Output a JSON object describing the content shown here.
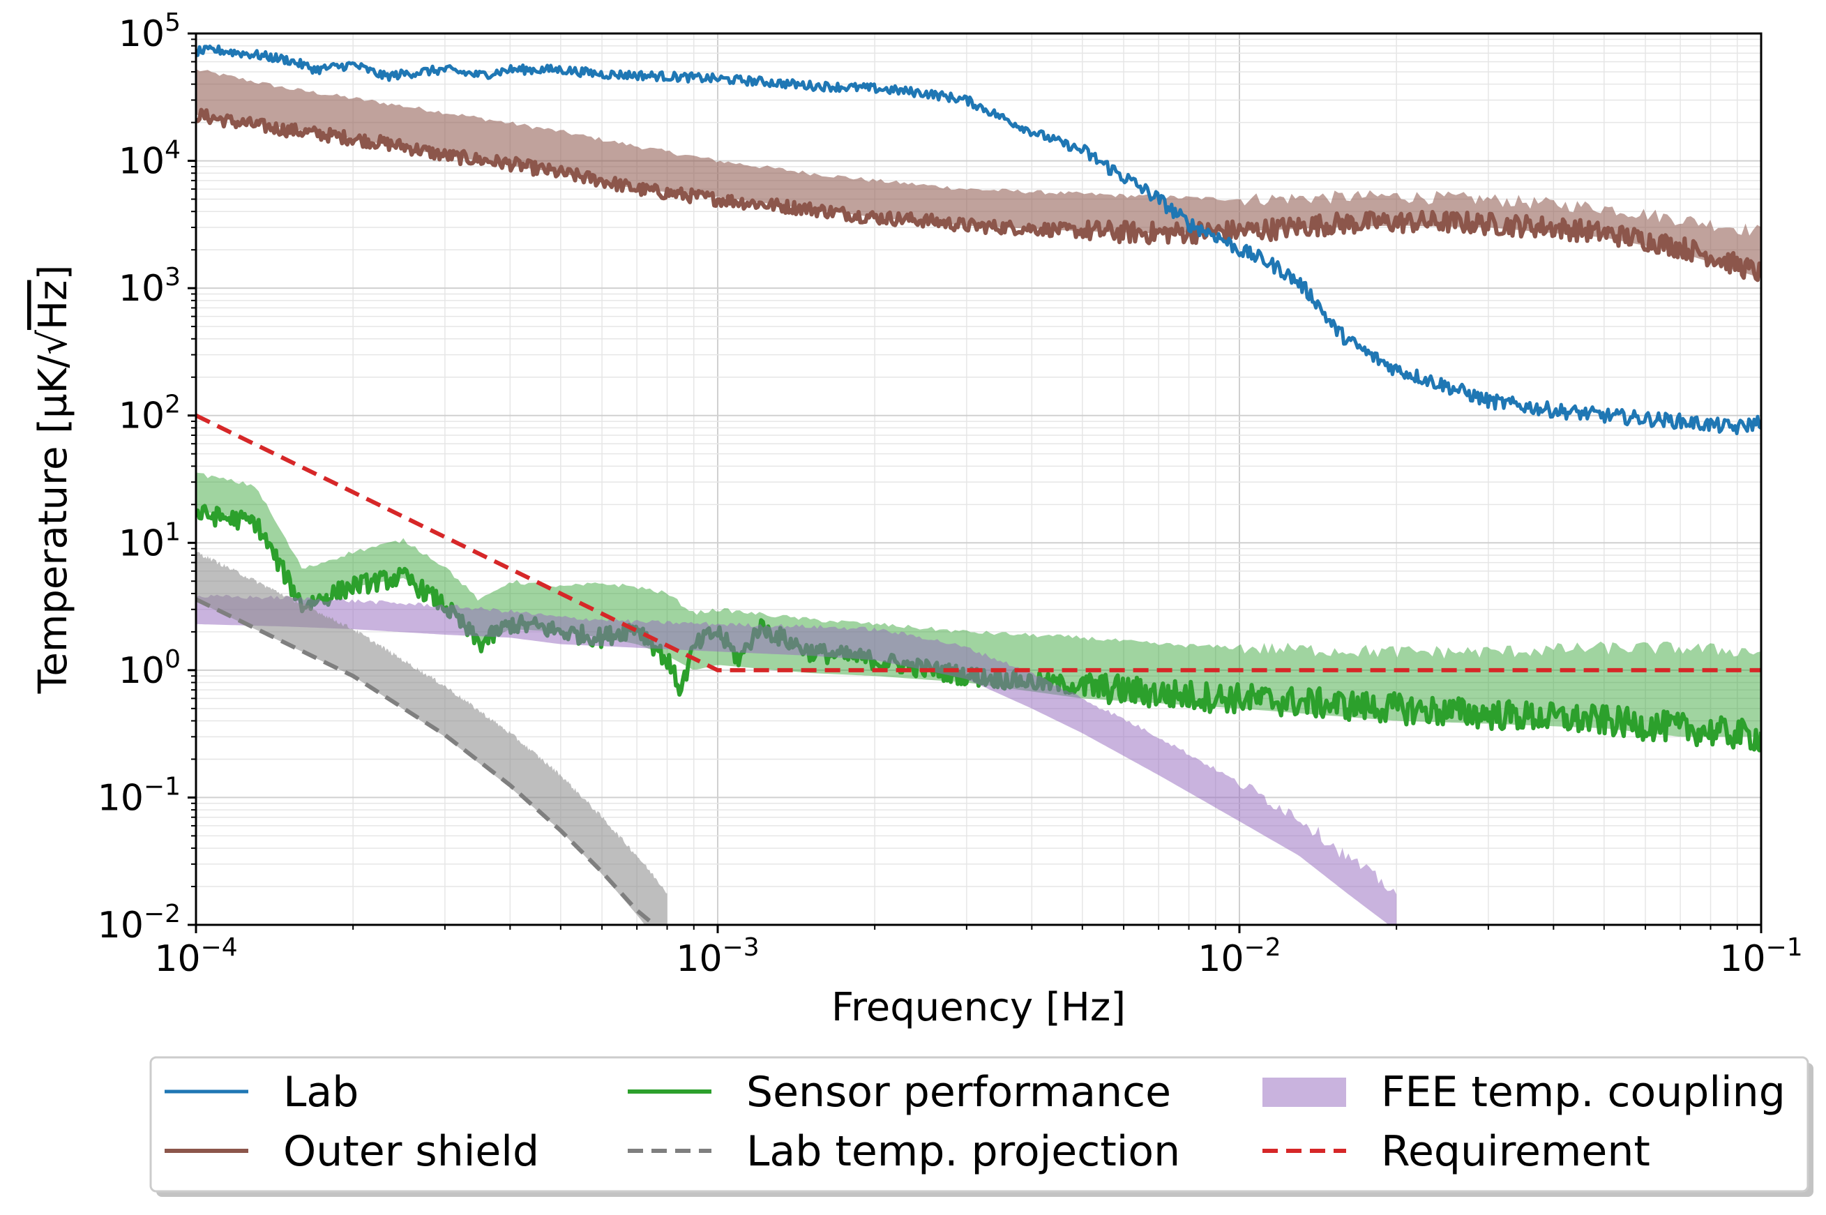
{
  "chart_data": {
    "type": "line",
    "xscale": "log",
    "yscale": "log",
    "xlim": [
      0.0001,
      0.1
    ],
    "ylim": [
      0.01,
      100000
    ],
    "xlabel": "Frequency [Hz]",
    "ylabel": "Temperature [µK/√Hz]",
    "ylabel_parts": {
      "prefix": "Temperature [µK/√",
      "radicand": "Hz",
      "suffix": "]"
    },
    "grid": true,
    "legend_position": "bottom",
    "x_ticks": [
      {
        "value": 0.0001,
        "base": "10",
        "exp": "−4"
      },
      {
        "value": 0.001,
        "base": "10",
        "exp": "−3"
      },
      {
        "value": 0.01,
        "base": "10",
        "exp": "−2"
      },
      {
        "value": 0.1,
        "base": "10",
        "exp": "−1"
      }
    ],
    "y_ticks": [
      {
        "value": 0.01,
        "base": "10",
        "exp": "−2"
      },
      {
        "value": 0.1,
        "base": "10",
        "exp": "−1"
      },
      {
        "value": 1,
        "base": "10",
        "exp": "0"
      },
      {
        "value": 10,
        "base": "10",
        "exp": "1"
      },
      {
        "value": 100,
        "base": "10",
        "exp": "2"
      },
      {
        "value": 1000,
        "base": "10",
        "exp": "3"
      },
      {
        "value": 10000,
        "base": "10",
        "exp": "4"
      },
      {
        "value": 100000,
        "base": "10",
        "exp": "5"
      }
    ],
    "series": [
      {
        "name": "Outer shield band",
        "kind": "band",
        "color": "#8c564b",
        "opacity": 0.55,
        "x": [
          0.0001,
          0.00015,
          0.0002,
          0.0003,
          0.0005,
          0.0007,
          0.001,
          0.0015,
          0.002,
          0.003,
          0.005,
          0.007,
          0.01,
          0.015,
          0.02,
          0.03,
          0.05,
          0.07,
          0.1
        ],
        "lower": [
          23000,
          18000,
          15000,
          11000,
          8000,
          6000,
          5200,
          4200,
          3600,
          3100,
          2800,
          2700,
          2800,
          3000,
          3100,
          3000,
          2500,
          1900,
          1200
        ],
        "upper": [
          52000,
          37000,
          31000,
          24000,
          17000,
          13000,
          10000,
          8000,
          7000,
          6000,
          5500,
          5200,
          5000,
          5200,
          5300,
          5000,
          4300,
          3500,
          2800
        ]
      },
      {
        "name": "Outer shield",
        "kind": "line",
        "color": "#8c564b",
        "width": 6,
        "x": [
          0.0001,
          0.00012,
          0.00015,
          0.0002,
          0.00025,
          0.0003,
          0.0004,
          0.0005,
          0.0006,
          0.0007,
          0.0008,
          0.001,
          0.0012,
          0.0015,
          0.002,
          0.0025,
          0.003,
          0.004,
          0.005,
          0.006,
          0.007,
          0.008,
          0.01,
          0.012,
          0.015,
          0.02,
          0.025,
          0.03,
          0.04,
          0.05,
          0.06,
          0.07,
          0.08,
          0.1
        ],
        "y": [
          23000,
          20000,
          17500,
          15000,
          13000,
          11000,
          9500,
          8000,
          7000,
          6000,
          5600,
          5000,
          4600,
          4200,
          3600,
          3400,
          3100,
          2950,
          2800,
          2750,
          2700,
          2750,
          2800,
          2950,
          3200,
          3300,
          3300,
          3200,
          3000,
          2700,
          2400,
          2100,
          1800,
          1300
        ],
        "jitter": 0.18
      },
      {
        "name": "Lab",
        "kind": "line",
        "color": "#1f77b4",
        "width": 5,
        "x": [
          0.0001,
          0.00011,
          0.00013,
          0.00015,
          0.00017,
          0.0002,
          0.00023,
          0.00027,
          0.0003,
          0.00035,
          0.0004,
          0.0005,
          0.0006,
          0.0007,
          0.0008,
          0.0009,
          0.001,
          0.0012,
          0.0015,
          0.002,
          0.0025,
          0.003,
          0.0035,
          0.004,
          0.005,
          0.006,
          0.007,
          0.008,
          0.009,
          0.01,
          0.011,
          0.012,
          0.013,
          0.014,
          0.015,
          0.016,
          0.018,
          0.02,
          0.025,
          0.03,
          0.04,
          0.05,
          0.07,
          0.09,
          0.1
        ],
        "y": [
          72000,
          74000,
          68000,
          62000,
          52000,
          57000,
          46000,
          50000,
          52000,
          47000,
          52000,
          52000,
          48000,
          47000,
          46000,
          45000,
          44000,
          42000,
          39000,
          37000,
          34000,
          30000,
          22000,
          17000,
          12000,
          7500,
          5000,
          3200,
          2600,
          2000,
          1700,
          1400,
          1100,
          800,
          520,
          400,
          290,
          230,
          170,
          130,
          110,
          100,
          90,
          80,
          90
        ],
        "jitter": 0.12
      },
      {
        "name": "Sensor performance band",
        "kind": "band",
        "color": "#2ca02c",
        "opacity": 0.45,
        "x": [
          0.0001,
          0.00013,
          0.00016,
          0.0002,
          0.00025,
          0.0003,
          0.00035,
          0.0004,
          0.0005,
          0.0006,
          0.0007,
          0.0008,
          0.0009,
          0.001,
          0.0015,
          0.002,
          0.003,
          0.005,
          0.007,
          0.01,
          0.02,
          0.03,
          0.05,
          0.07,
          0.1
        ],
        "lower": [
          18,
          15,
          3.2,
          4.5,
          5.3,
          3.3,
          1.6,
          2.1,
          2.0,
          1.8,
          1.6,
          1.3,
          1.0,
          1.1,
          0.95,
          0.9,
          0.8,
          0.6,
          0.55,
          0.5,
          0.4,
          0.38,
          0.35,
          0.3,
          0.3
        ],
        "upper": [
          35,
          28,
          6.2,
          8.5,
          10.5,
          6.5,
          3.5,
          5.0,
          4.5,
          4.8,
          4.5,
          4.0,
          2.8,
          3.0,
          2.5,
          2.3,
          2.0,
          1.8,
          1.6,
          1.5,
          1.4,
          1.4,
          1.5,
          1.5,
          1.4
        ]
      },
      {
        "name": "Sensor performance",
        "kind": "line",
        "color": "#2ca02c",
        "width": 6,
        "x": [
          0.0001,
          0.00013,
          0.00016,
          0.0002,
          0.00025,
          0.0003,
          0.00035,
          0.0004,
          0.00045,
          0.0005,
          0.0006,
          0.0007,
          0.00075,
          0.0008,
          0.00085,
          0.0009,
          0.00095,
          0.001,
          0.0011,
          0.0012,
          0.0015,
          0.002,
          0.003,
          0.005,
          0.007,
          0.01,
          0.02,
          0.03,
          0.05,
          0.07,
          0.1
        ],
        "y": [
          17,
          14.5,
          3.2,
          4.6,
          5.4,
          3.2,
          1.6,
          2.3,
          2.2,
          2.0,
          1.8,
          2.2,
          1.6,
          1.2,
          0.7,
          1.5,
          1.8,
          2.0,
          1.2,
          2.2,
          1.4,
          1.2,
          0.9,
          0.75,
          0.65,
          0.6,
          0.5,
          0.45,
          0.4,
          0.35,
          0.3
        ],
        "jitter": 0.25
      },
      {
        "name": "FEE temp. coupling",
        "kind": "band",
        "color": "#9467bd",
        "opacity": 0.5,
        "x": [
          0.0001,
          0.00015,
          0.0002,
          0.0003,
          0.0004,
          0.0005,
          0.0007,
          0.001,
          0.0015,
          0.002,
          0.0025,
          0.003,
          0.004,
          0.005,
          0.007,
          0.01,
          0.013,
          0.016,
          0.02
        ],
        "lower": [
          2.3,
          2.2,
          2.1,
          1.9,
          1.8,
          1.6,
          1.5,
          1.4,
          1.3,
          1.2,
          1.0,
          0.85,
          0.5,
          0.32,
          0.15,
          0.065,
          0.035,
          0.018,
          0.009
        ],
        "upper": [
          3.8,
          3.7,
          3.5,
          3.2,
          2.9,
          2.6,
          2.4,
          2.3,
          2.2,
          2.1,
          1.8,
          1.5,
          0.95,
          0.6,
          0.3,
          0.13,
          0.07,
          0.035,
          0.018
        ]
      },
      {
        "name": "Lab temp. projection band",
        "kind": "band",
        "color": "#888888",
        "opacity": 0.55,
        "x": [
          0.0001,
          0.0002,
          0.0003,
          0.0004,
          0.0005,
          0.0006,
          0.0007,
          0.0008
        ],
        "lower": [
          3.5,
          0.9,
          0.3,
          0.12,
          0.055,
          0.025,
          0.012,
          0.006
        ],
        "upper": [
          8.5,
          2.1,
          0.75,
          0.32,
          0.15,
          0.07,
          0.035,
          0.018
        ]
      },
      {
        "name": "Lab temp. projection",
        "kind": "line",
        "color": "#7f7f7f",
        "width": 6,
        "dash": "22,12",
        "x": [
          0.0001,
          0.0002,
          0.0003,
          0.0004,
          0.0005,
          0.0006,
          0.0007,
          0.00078
        ],
        "y": [
          3.6,
          0.9,
          0.31,
          0.125,
          0.055,
          0.026,
          0.013,
          0.009
        ],
        "jitter": 0
      },
      {
        "name": "Requirement",
        "kind": "line",
        "color": "#d62728",
        "width": 6,
        "dash": "22,12",
        "x": [
          0.0001,
          0.001,
          0.1
        ],
        "y": [
          100,
          1,
          1
        ],
        "jitter": 0
      }
    ],
    "legend": [
      {
        "label": "Lab",
        "color": "#1f77b4",
        "style": "line"
      },
      {
        "label": "Outer shield",
        "color": "#8c564b",
        "style": "line"
      },
      {
        "label": "Sensor performance",
        "color": "#2ca02c",
        "style": "line"
      },
      {
        "label": "Lab temp. projection",
        "color": "#7f7f7f",
        "style": "dashed"
      },
      {
        "label": "FEE temp. coupling",
        "color": "#9467bd",
        "style": "patch"
      },
      {
        "label": "Requirement",
        "color": "#d62728",
        "style": "dashed"
      }
    ]
  }
}
